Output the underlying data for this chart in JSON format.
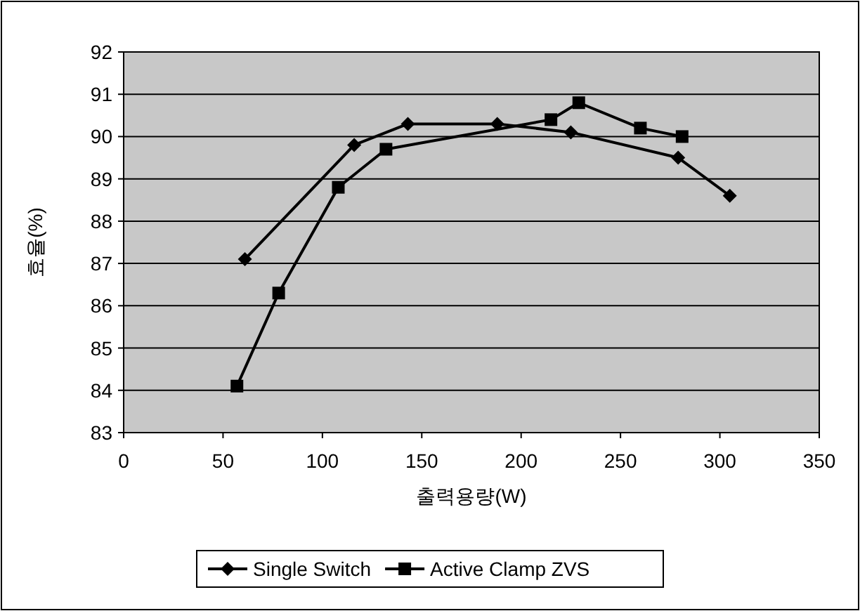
{
  "chart_data": {
    "type": "line",
    "xlabel": "출력용량(W)",
    "ylabel": "효율(%)",
    "xlim": [
      0,
      350
    ],
    "xticks": [
      0,
      50,
      100,
      150,
      200,
      250,
      300,
      350
    ],
    "ylim": [
      83,
      92
    ],
    "yticks": [
      83,
      84,
      85,
      86,
      87,
      88,
      89,
      90,
      91,
      92
    ],
    "grid": "y",
    "legend": "bottom",
    "series": [
      {
        "name": "Single Switch",
        "color": "#000000",
        "marker": "diamond",
        "x": [
          61,
          116,
          143,
          188,
          225,
          279,
          305
        ],
        "values": [
          87.1,
          89.8,
          90.3,
          90.3,
          90.1,
          89.5,
          88.6
        ]
      },
      {
        "name": "Active Clamp ZVS",
        "color": "#000000",
        "marker": "square",
        "x": [
          57,
          78,
          108,
          132,
          215,
          229,
          260,
          281
        ],
        "values": [
          84.1,
          86.3,
          88.8,
          89.7,
          90.4,
          90.8,
          90.2,
          90.0
        ]
      }
    ]
  }
}
